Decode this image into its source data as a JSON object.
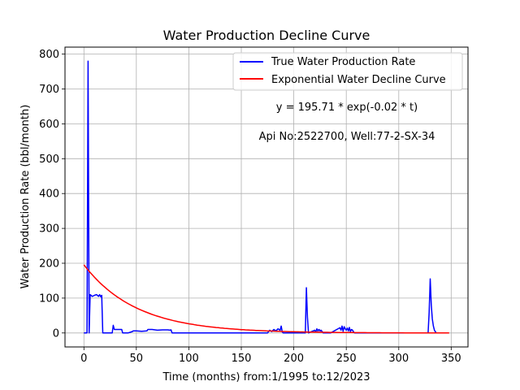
{
  "chart_data": {
    "type": "line",
    "title": "Water Production Decline Curve",
    "xlabel": "Time (months) from:1/1995 to:12/2023",
    "ylabel": "Water Production Rate (bbl/month)",
    "xlim": [
      -18,
      366
    ],
    "ylim": [
      -40,
      820
    ],
    "xticks": [
      0,
      50,
      100,
      150,
      200,
      250,
      300,
      350
    ],
    "yticks": [
      0,
      100,
      200,
      300,
      400,
      500,
      600,
      700,
      800
    ],
    "grid": true,
    "legend_position": "top-right",
    "annotations": [
      "y = 195.71 * exp(-0.02 * t)",
      "Api No:2522700, Well:77-2-SX-34"
    ],
    "series": [
      {
        "name": "True Water Production Rate",
        "color": "#0000ff",
        "x": [
          0,
          3,
          4,
          5,
          6,
          8,
          10,
          12,
          14,
          15,
          16,
          17,
          18,
          19,
          27,
          28,
          29,
          36,
          37,
          42,
          46,
          47,
          50,
          55,
          60,
          61,
          65,
          70,
          75,
          80,
          82,
          83,
          84,
          100,
          150,
          175,
          177,
          179,
          181,
          183,
          185,
          187,
          188,
          189,
          190,
          200,
          211,
          212,
          213,
          214,
          220,
          221,
          222,
          223,
          224,
          225,
          226,
          227,
          228,
          235,
          244,
          245,
          246,
          247,
          248,
          249,
          250,
          251,
          252,
          253,
          254,
          255,
          256,
          257,
          258,
          259,
          300,
          328,
          329,
          330,
          331,
          332,
          333,
          334,
          335,
          336,
          340,
          346
        ],
        "y": [
          0,
          0,
          780,
          0,
          110,
          105,
          108,
          110,
          105,
          110,
          104,
          108,
          0,
          0,
          0,
          22,
          10,
          10,
          0,
          0,
          4,
          6,
          6,
          5,
          6,
          10,
          10,
          8,
          9,
          9,
          8,
          9,
          0,
          0,
          0,
          0,
          8,
          4,
          10,
          6,
          12,
          8,
          20,
          3,
          0,
          0,
          0,
          130,
          45,
          0,
          8,
          3,
          12,
          6,
          10,
          6,
          8,
          4,
          0,
          0,
          15,
          8,
          20,
          5,
          18,
          12,
          8,
          14,
          6,
          16,
          4,
          10,
          8,
          3,
          0,
          0,
          0,
          0,
          60,
          155,
          80,
          40,
          20,
          8,
          3,
          0,
          0,
          0
        ]
      },
      {
        "name": "Exponential Water Decline Curve",
        "color": "#ff0000",
        "equation": {
          "a": 195.71,
          "b": 0.02
        },
        "x_range": [
          0,
          348
        ]
      }
    ]
  }
}
